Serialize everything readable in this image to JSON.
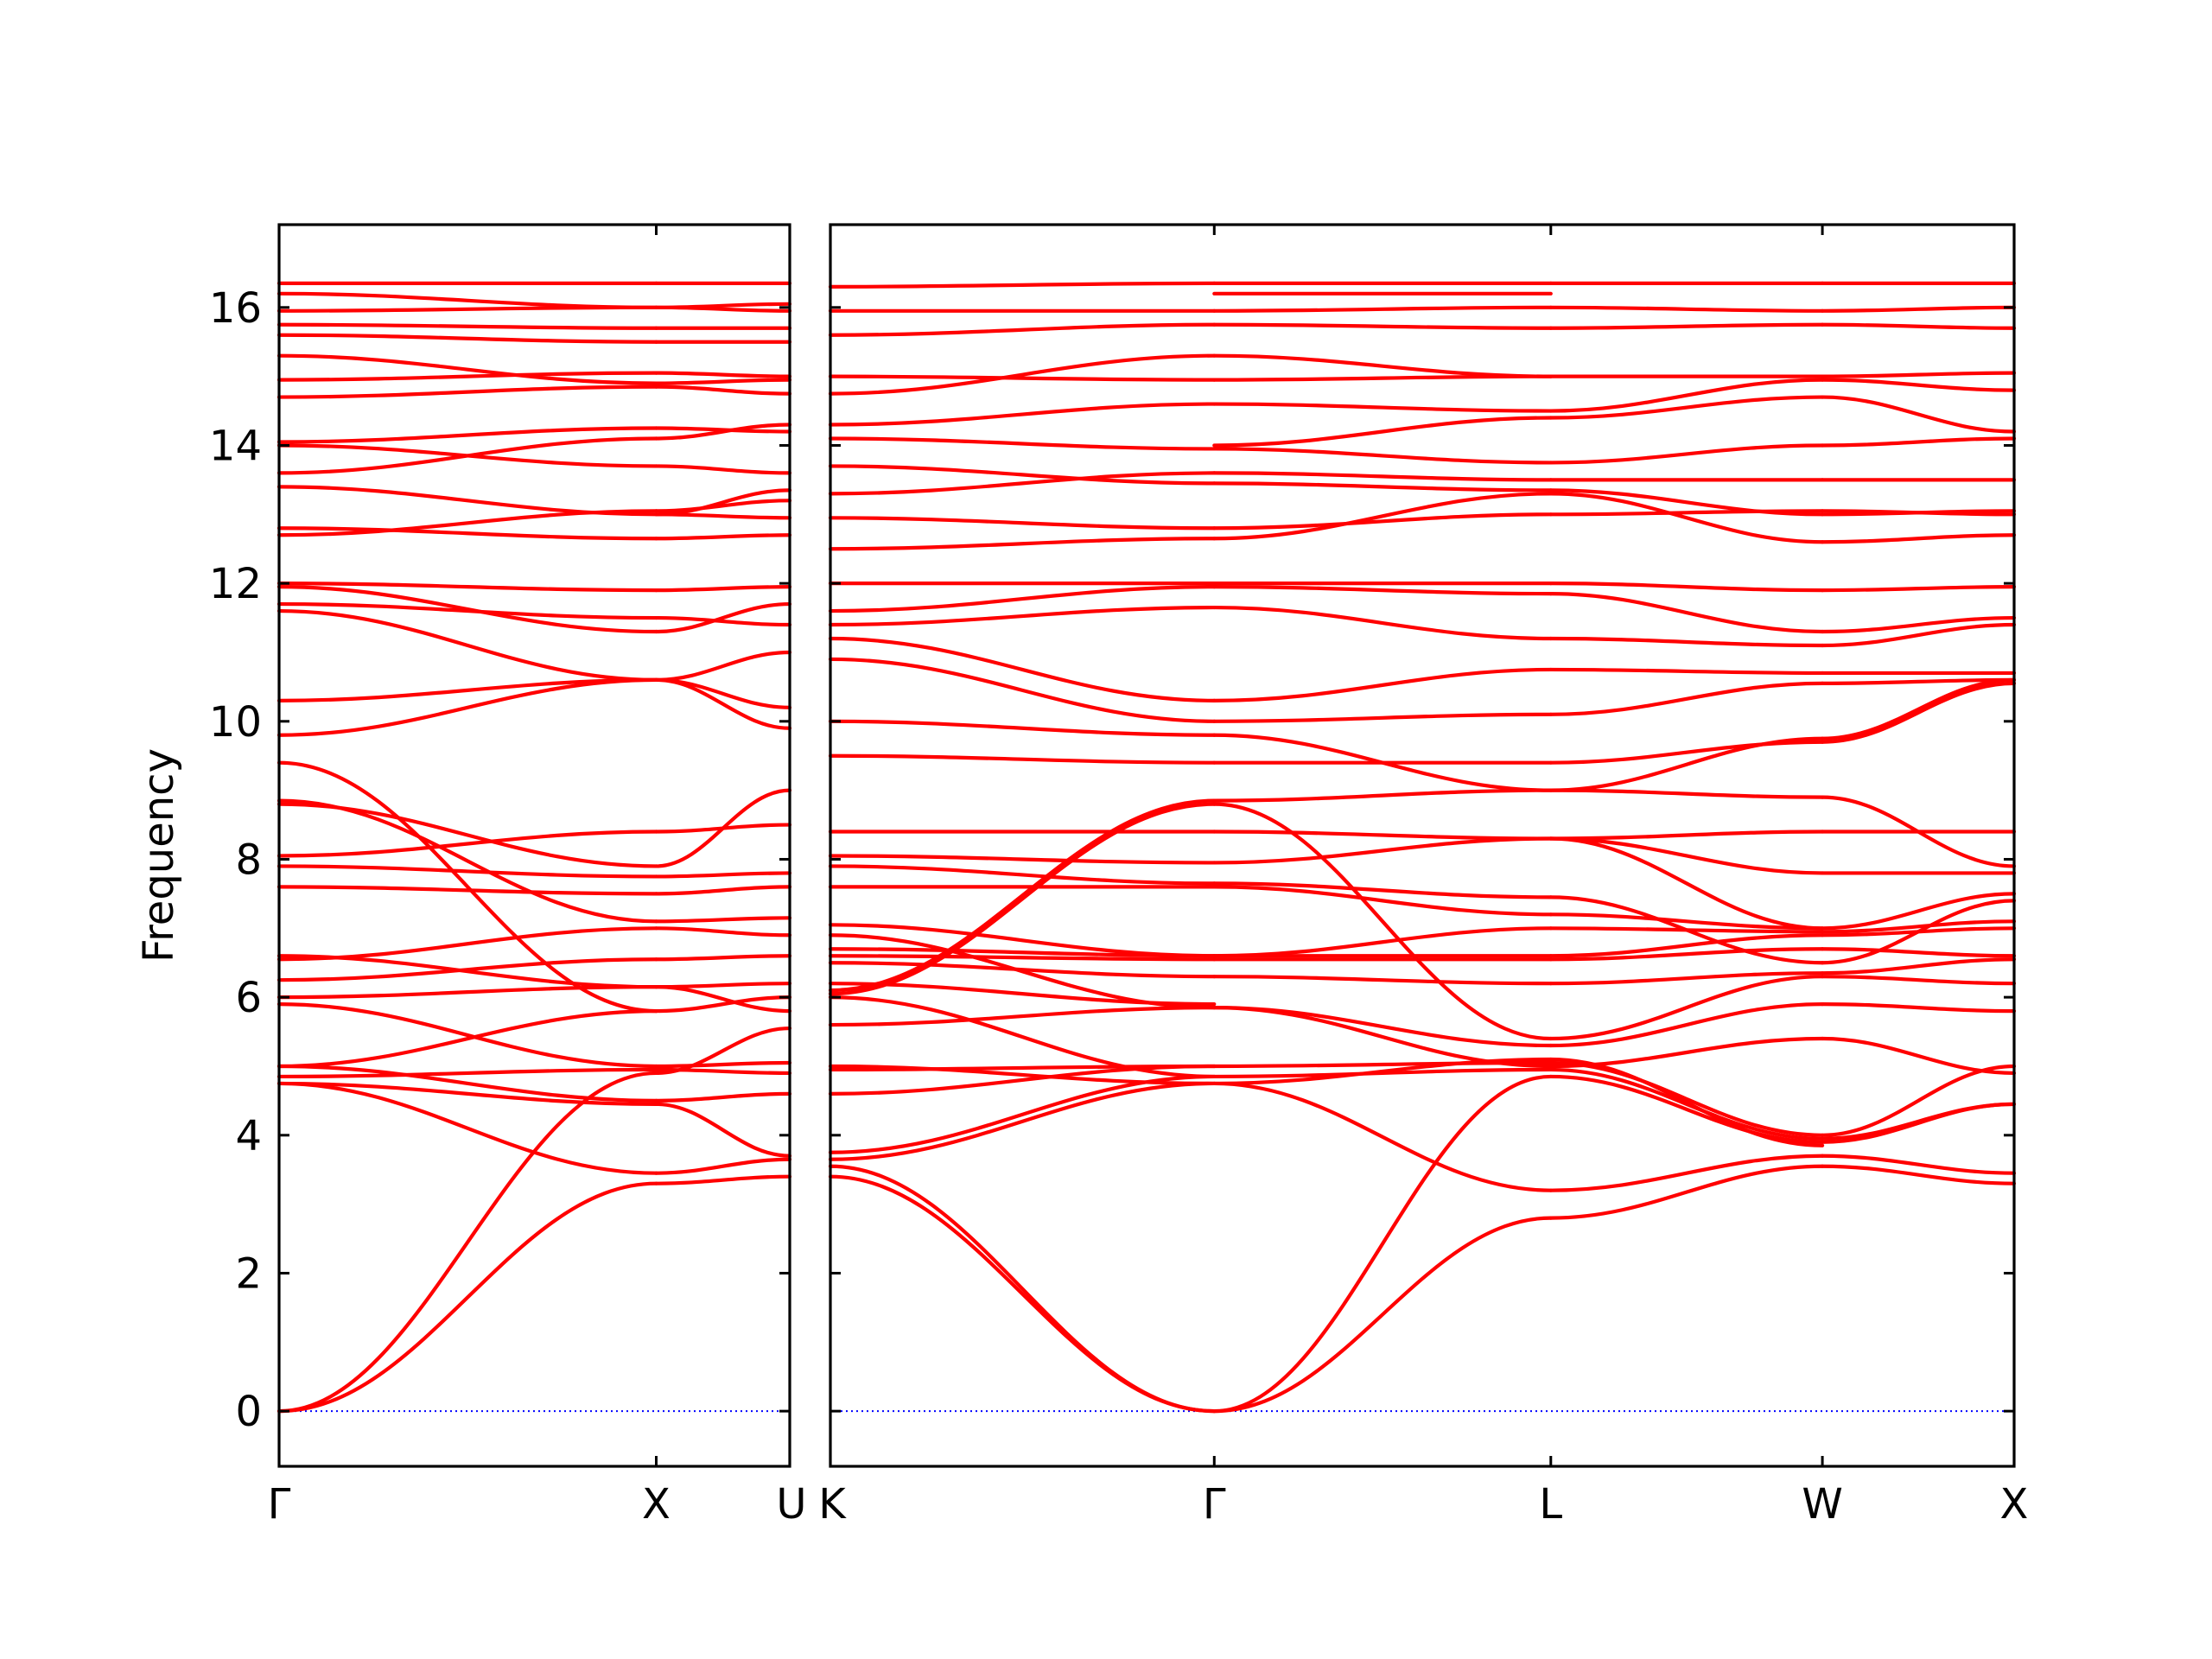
{
  "chart_data": {
    "type": "line",
    "ylabel": "Frequency",
    "ylim": [
      -0.8,
      17.2
    ],
    "yticks": [
      "0",
      "2",
      "4",
      "6",
      "8",
      "10",
      "12",
      "14",
      "16"
    ],
    "grid": false,
    "colors": {
      "bands": "#ff0000",
      "zero_line": "#0000ff",
      "frame": "#000000"
    },
    "panels": [
      {
        "xticks": [
          "Γ",
          "X",
          "U"
        ],
        "segments": [
          {
            "from": "Γ",
            "to": "X",
            "bands": [
              [
                0.0,
                3.3
              ],
              [
                0.0,
                4.9
              ],
              [
                4.75,
                3.45
              ],
              [
                4.75,
                4.45
              ],
              [
                4.85,
                4.95
              ],
              [
                5.0,
                4.5
              ],
              [
                5.0,
                5.8
              ],
              [
                5.9,
                5.0
              ],
              [
                6.0,
                6.15
              ],
              [
                6.25,
                6.55
              ],
              [
                6.55,
                7.0
              ],
              [
                6.6,
                6.15
              ],
              [
                7.6,
                7.5
              ],
              [
                7.9,
                7.75
              ],
              [
                8.05,
                8.4
              ],
              [
                8.8,
                7.9
              ],
              [
                8.85,
                7.1
              ],
              [
                9.4,
                5.8
              ],
              [
                9.8,
                10.6
              ],
              [
                10.3,
                10.6
              ],
              [
                11.6,
                10.6
              ],
              [
                11.7,
                11.5
              ],
              [
                11.95,
                11.3
              ],
              [
                12.0,
                11.9
              ],
              [
                12.7,
                13.05
              ],
              [
                12.8,
                12.65
              ],
              [
                13.4,
                13.0
              ],
              [
                13.6,
                14.1
              ],
              [
                14.0,
                13.7
              ],
              [
                14.05,
                14.25
              ],
              [
                14.7,
                14.85
              ],
              [
                14.95,
                15.05
              ],
              [
                15.3,
                14.9
              ],
              [
                15.6,
                15.5
              ],
              [
                15.75,
                15.7
              ],
              [
                15.95,
                16.0
              ],
              [
                16.2,
                16.0
              ],
              [
                16.35,
                16.35
              ]
            ]
          },
          {
            "from": "X",
            "to": "U",
            "bands": [
              [
                3.3,
                3.4
              ],
              [
                3.45,
                3.65
              ],
              [
                4.45,
                3.7
              ],
              [
                4.5,
                4.6
              ],
              [
                4.9,
                5.55
              ],
              [
                4.95,
                4.9
              ],
              [
                5.0,
                5.05
              ],
              [
                5.8,
                6.0
              ],
              [
                6.15,
                5.8
              ],
              [
                6.55,
                6.6
              ],
              [
                6.15,
                6.2
              ],
              [
                7.0,
                6.9
              ],
              [
                7.1,
                7.15
              ],
              [
                7.5,
                7.6
              ],
              [
                7.75,
                7.8
              ],
              [
                7.9,
                9.0
              ],
              [
                8.4,
                8.5
              ],
              [
                10.6,
                11.0
              ],
              [
                10.6,
                9.9
              ],
              [
                10.6,
                10.2
              ],
              [
                11.3,
                11.7
              ],
              [
                11.5,
                11.4
              ],
              [
                11.9,
                11.95
              ],
              [
                12.65,
                12.7
              ],
              [
                13.05,
                13.2
              ],
              [
                13.0,
                13.35
              ],
              [
                13.7,
                13.6
              ],
              [
                14.1,
                14.3
              ],
              [
                14.25,
                14.2
              ],
              [
                14.85,
                14.75
              ],
              [
                15.05,
                15.0
              ],
              [
                14.9,
                14.95
              ],
              [
                15.5,
                15.5
              ],
              [
                15.7,
                15.7
              ],
              [
                16.0,
                16.05
              ],
              [
                16.0,
                15.95
              ],
              [
                16.35,
                16.35
              ],
              [
                13.0,
                12.95
              ]
            ]
          }
        ]
      },
      {
        "xticks": [
          "K",
          "Γ",
          "L",
          "W",
          "X"
        ],
        "segments": [
          {
            "from": "K",
            "to": "Γ",
            "bands": [
              [
                3.4,
                0.0
              ],
              [
                3.55,
                0.0
              ],
              [
                3.65,
                4.75
              ],
              [
                3.75,
                4.85
              ],
              [
                4.6,
                5.0
              ],
              [
                4.95,
                5.0
              ],
              [
                5.0,
                4.75
              ],
              [
                5.6,
                5.85
              ],
              [
                6.0,
                4.85
              ],
              [
                6.05,
                8.8
              ],
              [
                6.1,
                8.85
              ],
              [
                6.2,
                5.9
              ],
              [
                6.5,
                6.3
              ],
              [
                6.6,
                6.55
              ],
              [
                6.7,
                6.6
              ],
              [
                6.9,
                5.85
              ],
              [
                7.05,
                6.6
              ],
              [
                7.6,
                7.6
              ],
              [
                7.9,
                7.65
              ],
              [
                8.05,
                7.95
              ],
              [
                8.4,
                8.4
              ],
              [
                9.5,
                9.4
              ],
              [
                10.0,
                9.8
              ],
              [
                10.9,
                10.0
              ],
              [
                11.2,
                10.3
              ],
              [
                11.4,
                11.65
              ],
              [
                11.6,
                11.95
              ],
              [
                12.0,
                12.0
              ],
              [
                12.5,
                12.65
              ],
              [
                12.95,
                12.8
              ],
              [
                13.3,
                13.6
              ],
              [
                13.7,
                13.45
              ],
              [
                14.1,
                13.95
              ],
              [
                14.3,
                14.6
              ],
              [
                14.75,
                15.3
              ],
              [
                15.0,
                14.95
              ],
              [
                15.6,
                15.75
              ],
              [
                15.95,
                15.95
              ],
              [
                16.3,
                16.35
              ]
            ]
          },
          {
            "from": "Γ",
            "to": "L",
            "bands": [
              [
                0.0,
                2.8
              ],
              [
                0.0,
                4.85
              ],
              [
                4.75,
                3.2
              ],
              [
                4.75,
                5.1
              ],
              [
                4.85,
                4.95
              ],
              [
                5.0,
                5.05
              ],
              [
                5.85,
                5.3
              ],
              [
                5.85,
                5.0
              ],
              [
                6.3,
                6.2
              ],
              [
                6.55,
                6.55
              ],
              [
                6.6,
                7.0
              ],
              [
                6.6,
                6.6
              ],
              [
                7.6,
                7.2
              ],
              [
                7.65,
                7.45
              ],
              [
                7.95,
                8.3
              ],
              [
                8.4,
                8.3
              ],
              [
                8.8,
                5.4
              ],
              [
                8.85,
                9.0
              ],
              [
                9.4,
                9.4
              ],
              [
                9.8,
                9.0
              ],
              [
                10.0,
                10.1
              ],
              [
                10.3,
                10.75
              ],
              [
                11.65,
                11.2
              ],
              [
                11.95,
                11.85
              ],
              [
                12.0,
                12.0
              ],
              [
                12.65,
                13.3
              ],
              [
                12.8,
                13.0
              ],
              [
                13.45,
                13.35
              ],
              [
                13.6,
                13.5
              ],
              [
                13.95,
                13.75
              ],
              [
                14.0,
                14.4
              ],
              [
                14.6,
                14.5
              ],
              [
                14.95,
                15.0
              ],
              [
                15.3,
                15.0
              ],
              [
                15.75,
                15.7
              ],
              [
                15.95,
                16.0
              ],
              [
                16.35,
                16.35
              ],
              [
                16.2,
                16.2
              ]
            ]
          },
          {
            "from": "L",
            "to": "W",
            "bands": [
              [
                2.8,
                3.55
              ],
              [
                3.2,
                3.7
              ],
              [
                4.85,
                3.9
              ],
              [
                4.95,
                3.95
              ],
              [
                5.0,
                5.4
              ],
              [
                5.05,
                4.0
              ],
              [
                5.1,
                3.85
              ],
              [
                5.3,
                5.9
              ],
              [
                5.4,
                6.3
              ],
              [
                6.2,
                6.35
              ],
              [
                6.55,
                6.7
              ],
              [
                6.6,
                6.9
              ],
              [
                7.0,
                6.95
              ],
              [
                7.2,
                7.0
              ],
              [
                7.45,
                6.5
              ],
              [
                8.3,
                7.0
              ],
              [
                8.3,
                7.8
              ],
              [
                8.3,
                8.4
              ],
              [
                9.0,
                9.75
              ],
              [
                9.0,
                8.9
              ],
              [
                9.4,
                9.7
              ],
              [
                10.1,
                10.55
              ],
              [
                10.75,
                10.7
              ],
              [
                11.2,
                11.1
              ],
              [
                11.85,
                11.3
              ],
              [
                12.0,
                11.9
              ],
              [
                13.0,
                13.05
              ],
              [
                13.3,
                12.6
              ],
              [
                13.35,
                13.0
              ],
              [
                13.5,
                13.5
              ],
              [
                13.75,
                14.0
              ],
              [
                14.4,
                14.7
              ],
              [
                14.5,
                14.95
              ],
              [
                15.0,
                15.0
              ],
              [
                15.7,
                15.75
              ],
              [
                16.0,
                15.95
              ],
              [
                16.35,
                16.35
              ]
            ]
          },
          {
            "from": "W",
            "to": "X",
            "bands": [
              [
                3.55,
                3.3
              ],
              [
                3.7,
                3.45
              ],
              [
                3.9,
                4.45
              ],
              [
                3.95,
                4.45
              ],
              [
                5.4,
                4.9
              ],
              [
                4.0,
                5.0
              ],
              [
                5.9,
                5.8
              ],
              [
                6.3,
                6.2
              ],
              [
                6.35,
                6.55
              ],
              [
                6.7,
                6.6
              ],
              [
                6.9,
                7.0
              ],
              [
                6.95,
                7.1
              ],
              [
                7.0,
                7.5
              ],
              [
                6.5,
                7.4
              ],
              [
                7.8,
                7.8
              ],
              [
                8.4,
                8.4
              ],
              [
                8.9,
                7.9
              ],
              [
                9.7,
                10.55
              ],
              [
                9.75,
                10.6
              ],
              [
                10.55,
                10.6
              ],
              [
                10.7,
                10.7
              ],
              [
                11.1,
                11.4
              ],
              [
                11.3,
                11.5
              ],
              [
                11.9,
                11.95
              ],
              [
                12.6,
                12.7
              ],
              [
                13.0,
                13.05
              ],
              [
                13.05,
                13.0
              ],
              [
                13.5,
                13.5
              ],
              [
                14.0,
                14.1
              ],
              [
                14.7,
                14.2
              ],
              [
                14.95,
                14.8
              ],
              [
                15.0,
                15.05
              ],
              [
                15.75,
                15.7
              ],
              [
                15.95,
                16.0
              ],
              [
                16.35,
                16.35
              ]
            ]
          }
        ]
      }
    ]
  }
}
